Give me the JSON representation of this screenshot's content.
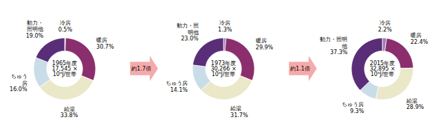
{
  "chart_data": [
    {
      "type": "donut",
      "title": "1965年度\n17,545 ×\n10⁶J/世帯",
      "categories": [
        "冷房",
        "暖房",
        "給湯",
        "ちゅう\n房",
        "動力・\n照明他"
      ],
      "values": [
        0.5,
        30.7,
        33.8,
        16.0,
        19.0
      ],
      "value_labels": [
        "0.5%",
        "30.7%",
        "33.8%",
        "16.0%",
        "19.0%"
      ],
      "data_labels": true,
      "colors": [
        "#9E7BB5",
        "#8B2E6E",
        "#EAE8C8",
        "#C8DDE8",
        "#5A2D78"
      ]
    },
    {
      "type": "donut",
      "title": "1973年度\n30,266 ×\n10⁶J/世帯",
      "categories": [
        "冷房",
        "暖房",
        "給湯",
        "ちゅう房",
        "動力・照\n明他"
      ],
      "values": [
        1.3,
        29.9,
        31.7,
        14.1,
        23.0
      ],
      "value_labels": [
        "1.3%",
        "29.9%",
        "31.7%",
        "14.1%",
        "23.0%"
      ],
      "data_labels": true,
      "colors": [
        "#9E7BB5",
        "#8B2E6E",
        "#EAE8C8",
        "#C8DDE8",
        "#5A2D78"
      ]
    },
    {
      "type": "donut",
      "title": "2015年度\n32,895 ×\n10⁶J/世帯",
      "categories": [
        "冷房",
        "暖房",
        "給湯",
        "ちゅう房",
        "動力・照明\n他"
      ],
      "values": [
        2.2,
        22.4,
        28.9,
        9.3,
        37.3
      ],
      "value_labels": [
        "2.2%",
        "22.4%",
        "28.9%",
        "9.3%",
        "37.3%"
      ],
      "data_labels": true,
      "colors": [
        "#9E7BB5",
        "#8B2E6E",
        "#EAE8C8",
        "#C8DDE8",
        "#5A2D78"
      ]
    }
  ],
  "annotations": [
    {
      "text": "約1.7倍",
      "color": "#F5AAAA"
    },
    {
      "text": "約1.1倍",
      "color": "#F5AAAA"
    }
  ]
}
